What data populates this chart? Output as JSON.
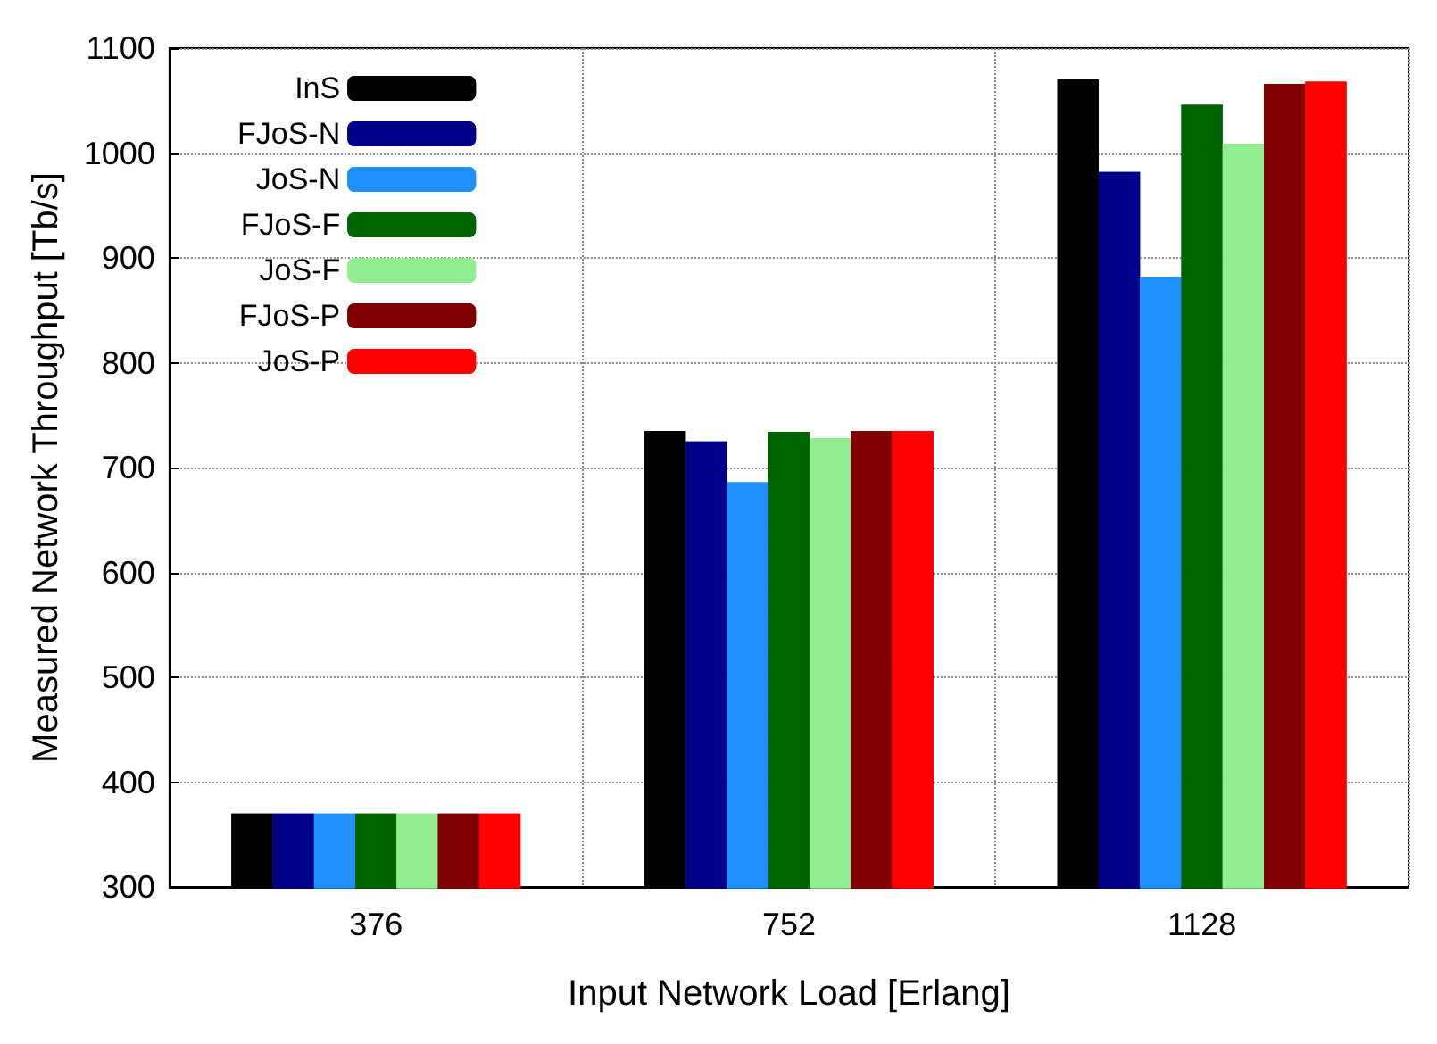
{
  "chart_data": {
    "type": "bar",
    "xlabel": "Input Network Load [Erlang]",
    "ylabel": "Measured Network Throughput [Tb/s]",
    "categories": [
      "376",
      "752",
      "1128"
    ],
    "series": [
      {
        "name": "InS",
        "color": "#000000",
        "values": [
          370,
          735,
          1070
        ]
      },
      {
        "name": "FJoS-N",
        "color": "#00008b",
        "values": [
          370,
          725,
          982
        ]
      },
      {
        "name": "JoS-N",
        "color": "#1e90ff",
        "values": [
          370,
          686,
          882
        ]
      },
      {
        "name": "FJoS-F",
        "color": "#006400",
        "values": [
          370,
          734,
          1046
        ]
      },
      {
        "name": "JoS-F",
        "color": "#90ee90",
        "values": [
          370,
          728,
          1009
        ]
      },
      {
        "name": "FJoS-P",
        "color": "#800000",
        "values": [
          370,
          735,
          1066
        ]
      },
      {
        "name": "JoS-P",
        "color": "#ff0000",
        "values": [
          370,
          735,
          1068
        ]
      }
    ],
    "ylim": [
      300,
      1100
    ],
    "yticks": [
      300,
      400,
      500,
      600,
      700,
      800,
      900,
      1000,
      1100
    ],
    "grid": true,
    "legend": "top left"
  }
}
